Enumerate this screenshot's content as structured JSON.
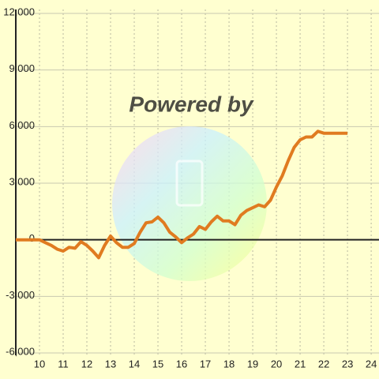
{
  "chart_data": {
    "type": "line",
    "watermark": "Powered by",
    "x": [
      9,
      9.25,
      9.5,
      9.75,
      10,
      10.25,
      10.5,
      10.75,
      11,
      11.25,
      11.5,
      11.75,
      12,
      12.25,
      12.5,
      12.75,
      13,
      13.25,
      13.5,
      13.75,
      14,
      14.25,
      14.5,
      14.75,
      15,
      15.25,
      15.5,
      15.75,
      16,
      16.25,
      16.5,
      16.75,
      17,
      17.25,
      17.5,
      17.75,
      18,
      18.25,
      18.5,
      18.75,
      19,
      19.25,
      19.5,
      19.75,
      20,
      20.25,
      20.5,
      20.75,
      21,
      21.25,
      21.5,
      21.75,
      22,
      22.25,
      22.5,
      22.75,
      23
    ],
    "series": [
      {
        "color": "#e07b20",
        "values": [
          0,
          0,
          0,
          0,
          0,
          -150,
          -300,
          -500,
          -600,
          -400,
          -450,
          -100,
          -300,
          -600,
          -950,
          -300,
          200,
          -150,
          -400,
          -400,
          -200,
          400,
          900,
          950,
          1200,
          900,
          400,
          150,
          -150,
          100,
          300,
          700,
          550,
          950,
          1250,
          1000,
          1000,
          800,
          1300,
          1550,
          1700,
          1850,
          1750,
          2100,
          2800,
          3400,
          4200,
          4900,
          5300,
          5450,
          5450,
          5750,
          5650,
          5650,
          5650,
          5650,
          5650
        ]
      }
    ],
    "xlim": [
      9,
      24.33
    ],
    "ylim": [
      -6000,
      12000
    ],
    "xticks": [
      10,
      11,
      12,
      13,
      14,
      15,
      16,
      17,
      18,
      19,
      20,
      21,
      22,
      23,
      24
    ],
    "yticks": [
      {
        "value": -6000,
        "label": "-6,000"
      },
      {
        "value": -3000,
        "label": "-3,000"
      },
      0,
      {
        "value": 3000,
        "label": "3,000"
      },
      {
        "value": 6000,
        "label": "6,000"
      },
      {
        "value": 9000,
        "label": "9,000"
      },
      {
        "value": 12000,
        "label": "12,000"
      }
    ],
    "grid": true
  }
}
